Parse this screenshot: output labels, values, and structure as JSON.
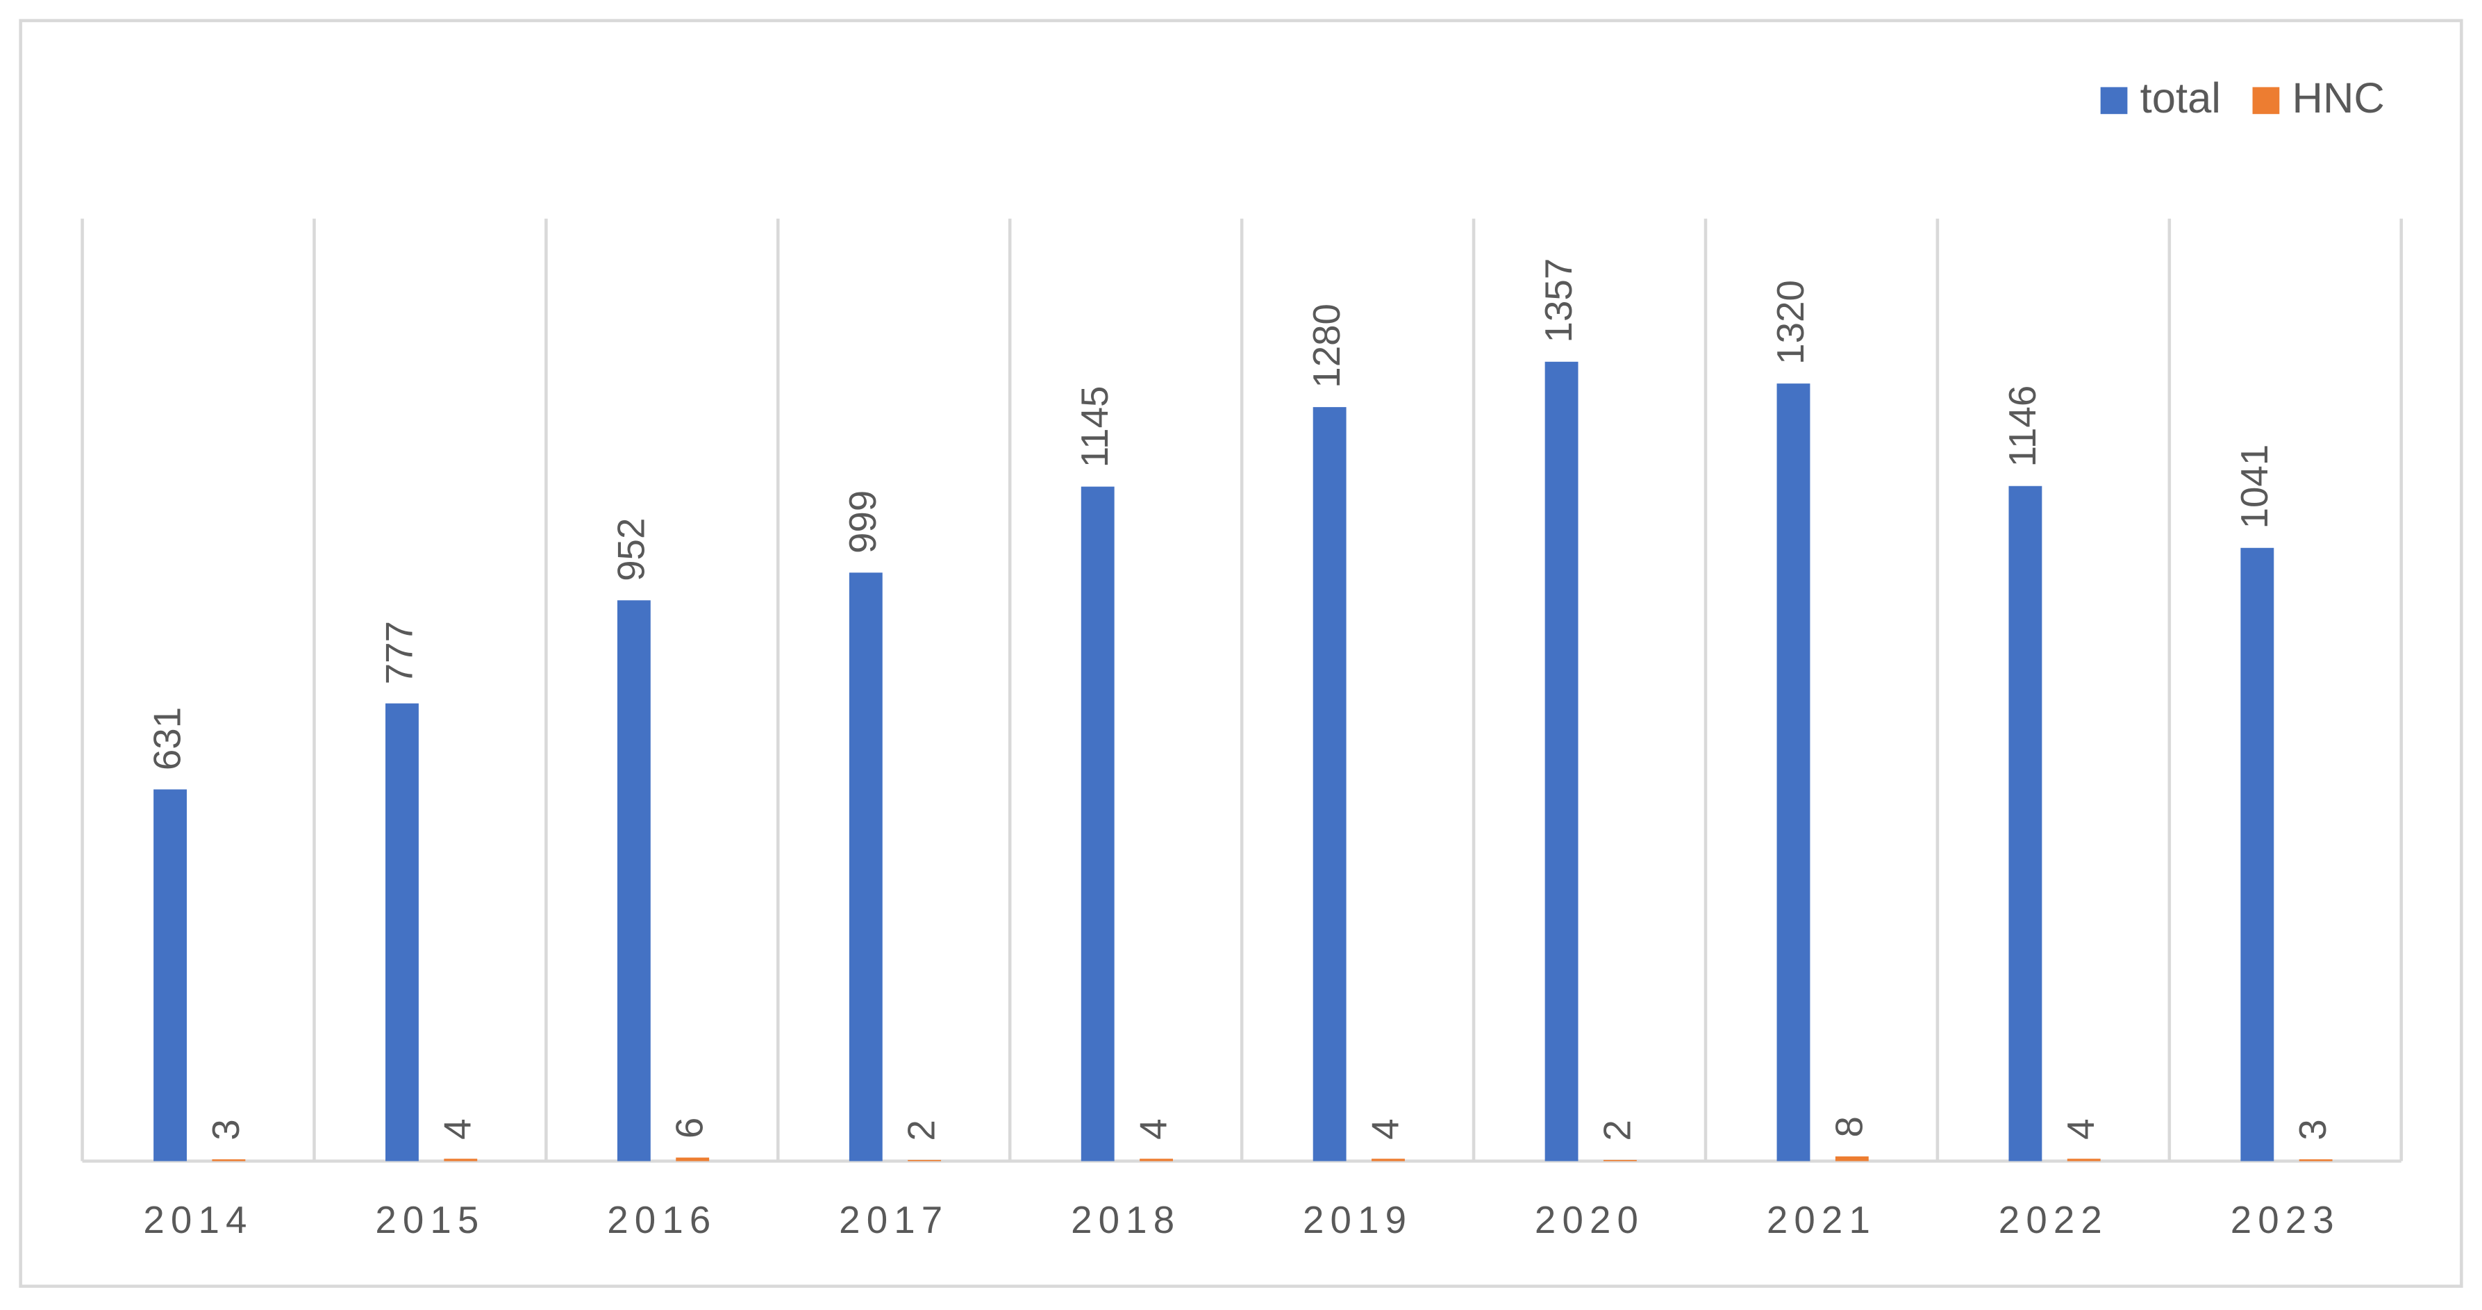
{
  "chart_data": {
    "type": "bar",
    "categories": [
      "2014",
      "2015",
      "2016",
      "2017",
      "2018",
      "2019",
      "2020",
      "2021",
      "2022",
      "2023"
    ],
    "series": [
      {
        "name": "total",
        "color": "#4472c4",
        "values": [
          631,
          777,
          952,
          999,
          1145,
          1280,
          1357,
          1320,
          1146,
          1041
        ]
      },
      {
        "name": "HNC",
        "color": "#ed7d31",
        "values": [
          3,
          4,
          6,
          2,
          4,
          4,
          2,
          8,
          4,
          3
        ]
      }
    ],
    "ylim": [
      0,
      1600
    ],
    "legend": "top-right"
  }
}
